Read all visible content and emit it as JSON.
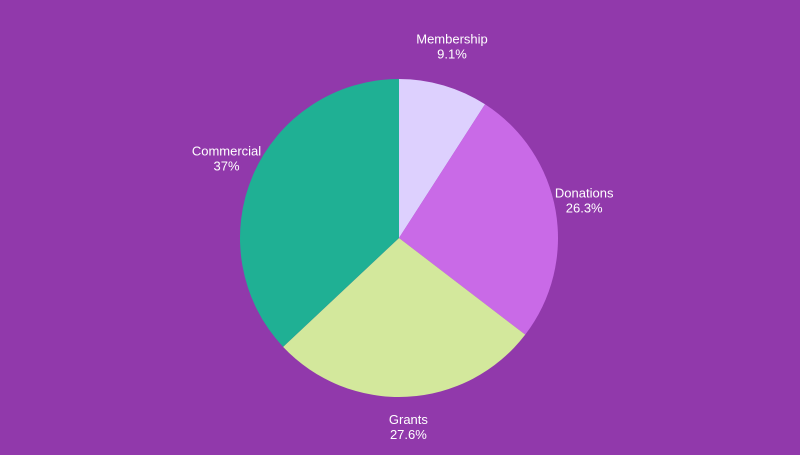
{
  "background": "#9139ab",
  "chart_data": {
    "type": "pie",
    "start_angle_deg": 0,
    "direction": "clockwise",
    "slices": [
      {
        "label": "Membership",
        "value": 9.1,
        "value_label": "9.1%",
        "color": "#ddd0fe"
      },
      {
        "label": "Donations",
        "value": 26.3,
        "value_label": "26.3%",
        "color": "#c96ae7"
      },
      {
        "label": "Grants",
        "value": 27.6,
        "value_label": "27.6%",
        "color": "#d3e89c"
      },
      {
        "label": "Commercial",
        "value": 37,
        "value_label": "37%",
        "color": "#1fb094"
      }
    ]
  }
}
